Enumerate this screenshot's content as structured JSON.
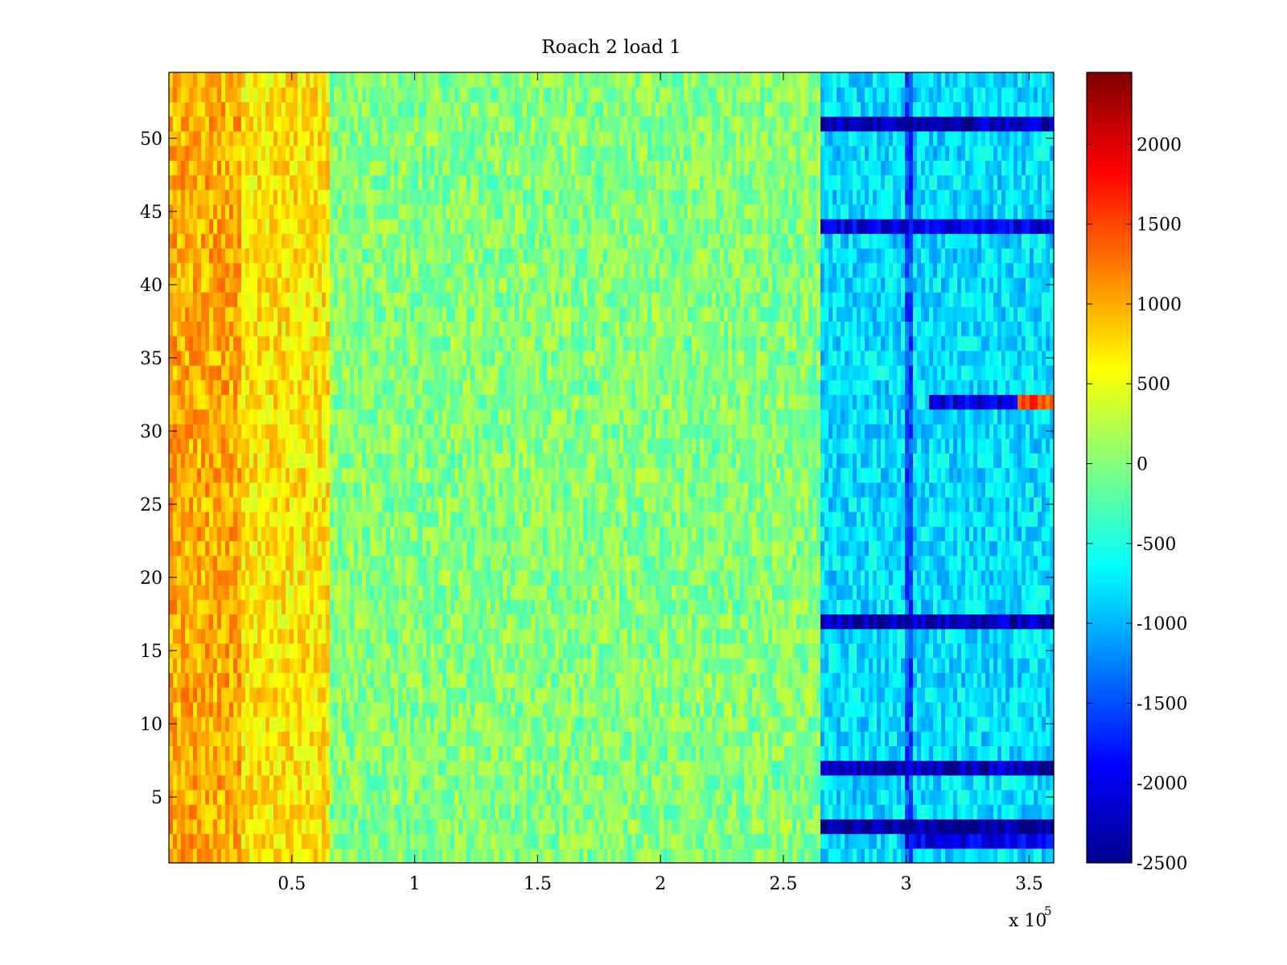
{
  "chart_data": {
    "type": "heatmap",
    "title": "Roach 2 load 1",
    "xlabel": "",
    "ylabel": "",
    "x_range": [
      0,
      360000
    ],
    "y_range": [
      0.5,
      54.5
    ],
    "rows": 54,
    "x_multiplier_label": {
      "base": "x 10",
      "exponent": "5"
    },
    "x_ticks": [
      {
        "value": 50000,
        "label": "0.5"
      },
      {
        "value": 100000,
        "label": "1"
      },
      {
        "value": 150000,
        "label": "1.5"
      },
      {
        "value": 200000,
        "label": "2"
      },
      {
        "value": 250000,
        "label": "2.5"
      },
      {
        "value": 300000,
        "label": "3"
      },
      {
        "value": 350000,
        "label": "3.5"
      }
    ],
    "y_ticks": [
      {
        "value": 5,
        "label": "5"
      },
      {
        "value": 10,
        "label": "10"
      },
      {
        "value": 15,
        "label": "15"
      },
      {
        "value": 20,
        "label": "20"
      },
      {
        "value": 25,
        "label": "25"
      },
      {
        "value": 30,
        "label": "30"
      },
      {
        "value": 35,
        "label": "35"
      },
      {
        "value": 40,
        "label": "40"
      },
      {
        "value": 45,
        "label": "45"
      },
      {
        "value": 50,
        "label": "50"
      }
    ],
    "colorbar": {
      "colormap": "jet",
      "clim": [
        -2500,
        2450
      ],
      "ticks": [
        {
          "value": 2000,
          "label": "2000"
        },
        {
          "value": 1500,
          "label": "1500"
        },
        {
          "value": 1000,
          "label": "1000"
        },
        {
          "value": 500,
          "label": "500"
        },
        {
          "value": 0,
          "label": "0"
        },
        {
          "value": -500,
          "label": "-500"
        },
        {
          "value": -1000,
          "label": "-1000"
        },
        {
          "value": -1500,
          "label": "-1500"
        },
        {
          "value": -2000,
          "label": "-2000"
        },
        {
          "value": -2500,
          "label": "-2500"
        }
      ]
    },
    "regions": [
      {
        "x": [
          0,
          30000
        ],
        "rows": [
          1,
          54
        ],
        "approx_value": 1000
      },
      {
        "x": [
          30000,
          65000
        ],
        "rows": [
          1,
          54
        ],
        "approx_value": 700
      },
      {
        "x": [
          65000,
          260000
        ],
        "rows": [
          1,
          54
        ],
        "approx_value": 0
      },
      {
        "x": [
          265000,
          360000
        ],
        "rows": [
          1,
          54
        ],
        "approx_value": -800
      },
      {
        "x": [
          300000,
          303000
        ],
        "rows": [
          1,
          54
        ],
        "approx_value": -1500
      }
    ],
    "strong_rows": [
      {
        "row": 51,
        "x": [
          265000,
          360000
        ],
        "approx_value": -2200
      },
      {
        "row": 44,
        "x": [
          265000,
          360000
        ],
        "approx_value": -2000
      },
      {
        "row": 32,
        "x": [
          310000,
          345000
        ],
        "approx_value": -2000
      },
      {
        "row": 32,
        "x": [
          345000,
          360000
        ],
        "approx_value": 1500
      },
      {
        "row": 17,
        "x": [
          265000,
          360000
        ],
        "approx_value": -2200
      },
      {
        "row": 7,
        "x": [
          265000,
          360000
        ],
        "approx_value": -2200
      },
      {
        "row": 3,
        "x": [
          265000,
          360000
        ],
        "approx_value": -2400
      },
      {
        "row": 2,
        "x": [
          300000,
          360000
        ],
        "approx_value": -2000
      }
    ]
  }
}
